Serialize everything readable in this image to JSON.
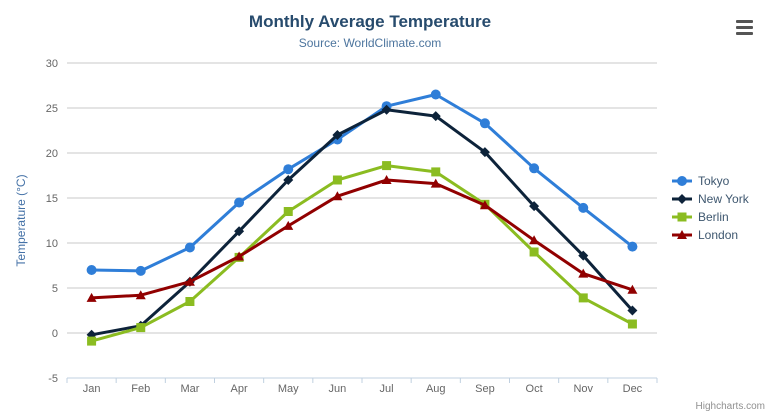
{
  "chart_data": {
    "type": "line",
    "title": "Monthly Average Temperature",
    "subtitle": "Source: WorldClimate.com",
    "xlabel": "",
    "ylabel": "Temperature (°C)",
    "categories": [
      "Jan",
      "Feb",
      "Mar",
      "Apr",
      "May",
      "Jun",
      "Jul",
      "Aug",
      "Sep",
      "Oct",
      "Nov",
      "Dec"
    ],
    "series": [
      {
        "name": "Tokyo",
        "color": "#2f7ed8",
        "marker": "circle",
        "values": [
          7.0,
          6.9,
          9.5,
          14.5,
          18.2,
          21.5,
          25.2,
          26.5,
          23.3,
          18.3,
          13.9,
          9.6
        ]
      },
      {
        "name": "New York",
        "color": "#0d233a",
        "marker": "diamond",
        "values": [
          -0.2,
          0.8,
          5.7,
          11.3,
          17.0,
          22.0,
          24.8,
          24.1,
          20.1,
          14.1,
          8.6,
          2.5
        ]
      },
      {
        "name": "Berlin",
        "color": "#8bbc21",
        "marker": "square",
        "values": [
          -0.9,
          0.6,
          3.5,
          8.4,
          13.5,
          17.0,
          18.6,
          17.9,
          14.3,
          9.0,
          3.9,
          1.0
        ]
      },
      {
        "name": "London",
        "color": "#910000",
        "marker": "triangle",
        "values": [
          3.9,
          4.2,
          5.7,
          8.5,
          11.9,
          15.2,
          17.0,
          16.6,
          14.2,
          10.3,
          6.6,
          4.8
        ]
      }
    ],
    "yticks": [
      -5,
      0,
      5,
      10,
      15,
      20,
      25,
      30
    ],
    "ylim": [
      -5,
      30
    ],
    "grid": true,
    "legend_position": "right",
    "style": {
      "grid_color": "#c8c8c8",
      "axis_line_color": "#c0d0e0",
      "title_color": "#274b6d",
      "subtitle_color": "#4d759e",
      "tick_label_color": "#666666",
      "yaxis_title_color": "#4572a7",
      "legend_text_color": "#3e576f"
    }
  },
  "export_menu": {
    "icon": "hamburger-icon"
  },
  "credits": {
    "label": "Highcharts.com"
  }
}
